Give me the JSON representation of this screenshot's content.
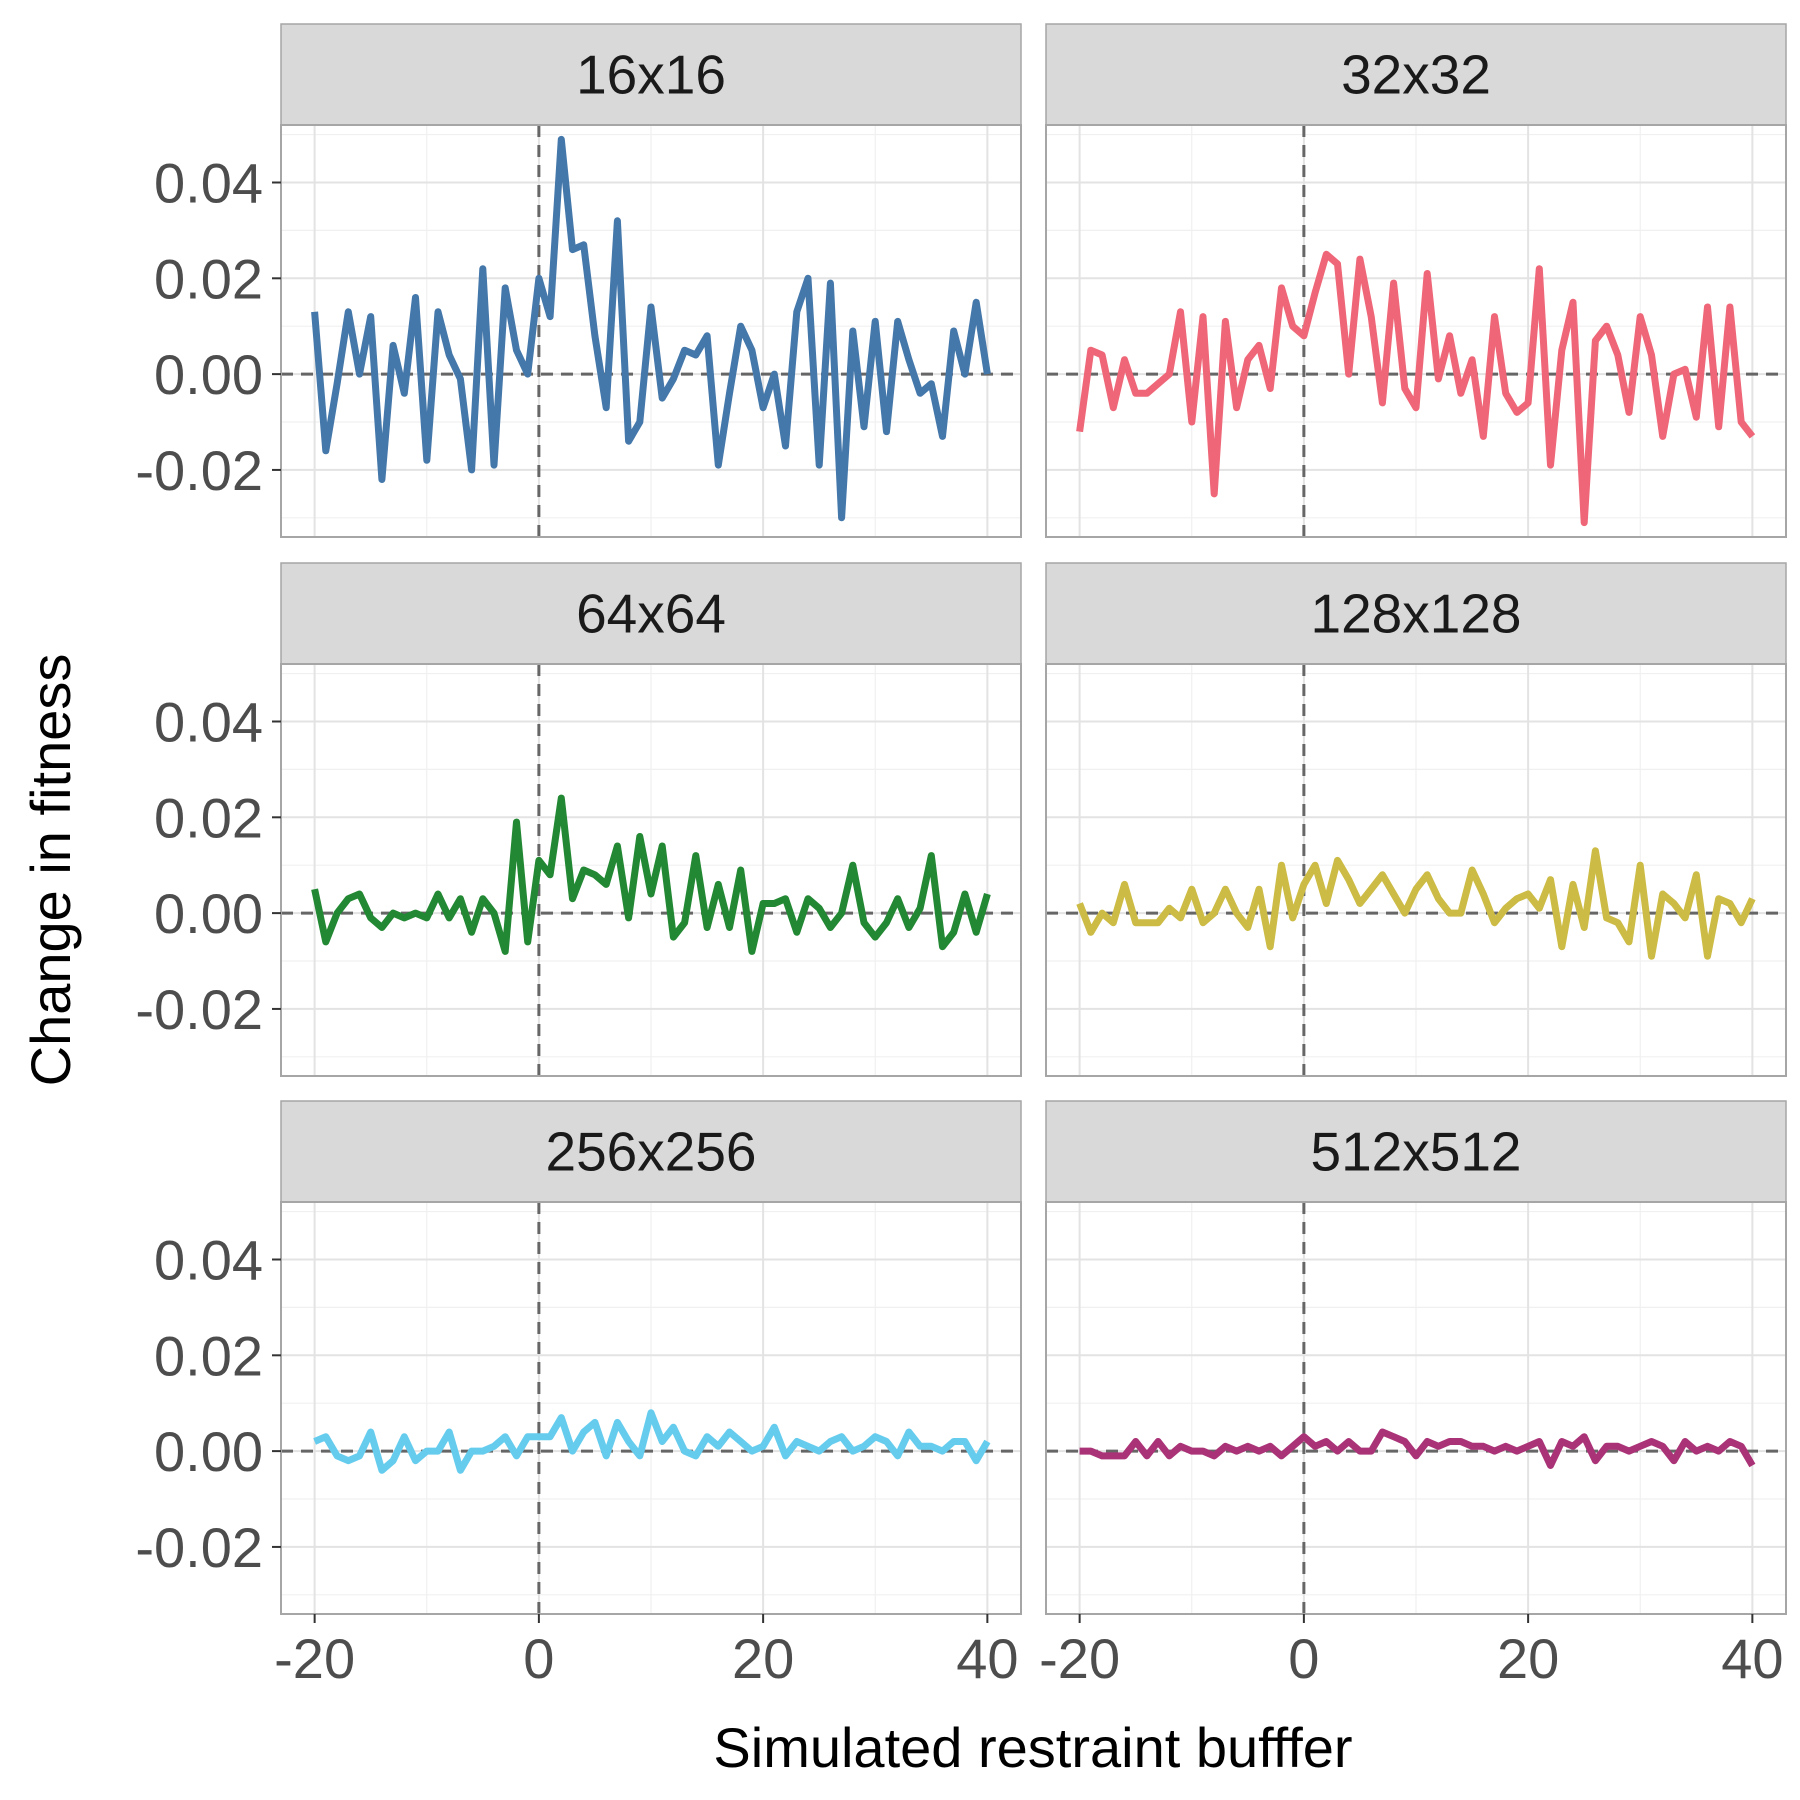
{
  "chart_data": {
    "type": "line",
    "layout": "facet-grid",
    "xlabel": "Simulated restraint bufffer",
    "ylabel": "Change in fitness",
    "xlim": [
      -23,
      43
    ],
    "ylim": [
      -0.034,
      0.052
    ],
    "x_ticks": [
      -20,
      0,
      20,
      40
    ],
    "x_tick_labels": [
      "-20",
      "0",
      "20",
      "40"
    ],
    "y_ticks": [
      -0.02,
      0.0,
      0.02,
      0.04
    ],
    "y_tick_labels": [
      "-0.02",
      "0.00",
      "0.02",
      "0.04"
    ],
    "reference_lines": {
      "x": 0,
      "y": 0,
      "style": "dashed",
      "color": "#666666"
    },
    "grid": true,
    "legend": "none",
    "x": [
      -20,
      -19,
      -18,
      -17,
      -16,
      -15,
      -14,
      -13,
      -12,
      -11,
      -10,
      -9,
      -8,
      -7,
      -6,
      -5,
      -4,
      -3,
      -2,
      -1,
      0,
      1,
      2,
      3,
      4,
      5,
      6,
      7,
      8,
      9,
      10,
      11,
      12,
      13,
      14,
      15,
      16,
      17,
      18,
      19,
      20,
      21,
      22,
      23,
      24,
      25,
      26,
      27,
      28,
      29,
      30,
      31,
      32,
      33,
      34,
      35,
      36,
      37,
      38,
      39,
      40
    ],
    "panels": [
      {
        "name": "16x16",
        "color": "#4477aa",
        "values": [
          0.013,
          -0.016,
          -0.002,
          0.013,
          0.0,
          0.012,
          -0.022,
          0.006,
          -0.004,
          0.016,
          -0.018,
          0.013,
          0.004,
          -0.001,
          -0.02,
          0.022,
          -0.019,
          0.018,
          0.005,
          0.0,
          0.02,
          0.012,
          0.049,
          0.026,
          0.027,
          0.008,
          -0.007,
          0.032,
          -0.014,
          -0.01,
          0.014,
          -0.005,
          -0.001,
          0.005,
          0.004,
          0.008,
          -0.019,
          -0.004,
          0.01,
          0.005,
          -0.007,
          0.0,
          -0.015,
          0.013,
          0.02,
          -0.019,
          0.019,
          -0.03,
          0.009,
          -0.011,
          0.011,
          -0.012,
          0.011,
          0.003,
          -0.004,
          -0.002,
          -0.013,
          0.009,
          0.0,
          0.015,
          0.0
        ]
      },
      {
        "name": "32x32",
        "color": "#ee6677",
        "values": [
          -0.012,
          0.005,
          0.004,
          -0.007,
          0.003,
          -0.004,
          -0.004,
          -0.002,
          0.0,
          0.013,
          -0.01,
          0.012,
          -0.025,
          0.011,
          -0.007,
          0.003,
          0.006,
          -0.003,
          0.018,
          0.01,
          0.008,
          0.017,
          0.025,
          0.023,
          0.0,
          0.024,
          0.012,
          -0.006,
          0.019,
          -0.003,
          -0.007,
          0.021,
          -0.001,
          0.008,
          -0.004,
          0.003,
          -0.013,
          0.012,
          -0.004,
          -0.008,
          -0.006,
          0.022,
          -0.019,
          0.005,
          0.015,
          -0.031,
          0.007,
          0.01,
          0.004,
          -0.008,
          0.012,
          0.004,
          -0.013,
          0.0,
          0.001,
          -0.009,
          0.014,
          -0.011,
          0.014,
          -0.01,
          -0.013
        ]
      },
      {
        "name": "64x64",
        "color": "#228833",
        "values": [
          0.005,
          -0.006,
          0.0,
          0.003,
          0.004,
          -0.001,
          -0.003,
          0.0,
          -0.001,
          0.0,
          -0.001,
          0.004,
          -0.001,
          0.003,
          -0.004,
          0.003,
          0.0,
          -0.008,
          0.019,
          -0.006,
          0.011,
          0.008,
          0.024,
          0.003,
          0.009,
          0.008,
          0.006,
          0.014,
          -0.001,
          0.016,
          0.004,
          0.014,
          -0.005,
          -0.002,
          0.012,
          -0.003,
          0.006,
          -0.003,
          0.009,
          -0.008,
          0.002,
          0.002,
          0.003,
          -0.004,
          0.003,
          0.001,
          -0.003,
          0.0,
          0.01,
          -0.002,
          -0.005,
          -0.002,
          0.003,
          -0.003,
          0.001,
          0.012,
          -0.007,
          -0.004,
          0.004,
          -0.004,
          0.004
        ]
      },
      {
        "name": "128x128",
        "color": "#ccbb44",
        "values": [
          0.002,
          -0.004,
          0.0,
          -0.002,
          0.006,
          -0.002,
          -0.002,
          -0.002,
          0.001,
          -0.001,
          0.005,
          -0.002,
          0.0,
          0.005,
          0.0,
          -0.003,
          0.005,
          -0.007,
          0.01,
          -0.001,
          0.006,
          0.01,
          0.002,
          0.011,
          0.007,
          0.002,
          0.005,
          0.008,
          0.004,
          0.0,
          0.005,
          0.008,
          0.003,
          0.0,
          0.0,
          0.009,
          0.004,
          -0.002,
          0.001,
          0.003,
          0.004,
          0.001,
          0.007,
          -0.007,
          0.006,
          -0.003,
          0.013,
          -0.001,
          -0.002,
          -0.006,
          0.01,
          -0.009,
          0.004,
          0.002,
          -0.001,
          0.008,
          -0.009,
          0.003,
          0.002,
          -0.002,
          0.003
        ]
      },
      {
        "name": "256x256",
        "color": "#66ccee",
        "values": [
          0.002,
          0.003,
          -0.001,
          -0.002,
          -0.001,
          0.004,
          -0.004,
          -0.002,
          0.003,
          -0.002,
          0.0,
          0.0,
          0.004,
          -0.004,
          0.0,
          0.0,
          0.001,
          0.003,
          -0.001,
          0.003,
          0.003,
          0.003,
          0.007,
          0.0,
          0.004,
          0.006,
          -0.001,
          0.006,
          0.002,
          -0.001,
          0.008,
          0.002,
          0.005,
          0.0,
          -0.001,
          0.003,
          0.001,
          0.004,
          0.002,
          0.0,
          0.001,
          0.005,
          -0.001,
          0.002,
          0.001,
          0.0,
          0.002,
          0.003,
          0.0,
          0.001,
          0.003,
          0.002,
          -0.001,
          0.004,
          0.001,
          0.001,
          0.0,
          0.002,
          0.002,
          -0.002,
          0.002
        ]
      },
      {
        "name": "512x512",
        "color": "#aa3377",
        "values": [
          0.0,
          0.0,
          -0.001,
          -0.001,
          -0.001,
          0.002,
          -0.001,
          0.002,
          -0.001,
          0.001,
          0.0,
          0.0,
          -0.001,
          0.001,
          0.0,
          0.001,
          0.0,
          0.001,
          -0.001,
          0.001,
          0.003,
          0.001,
          0.002,
          0.0,
          0.002,
          0.0,
          0.0,
          0.004,
          0.003,
          0.002,
          -0.001,
          0.002,
          0.001,
          0.002,
          0.002,
          0.001,
          0.001,
          0.0,
          0.001,
          0.0,
          0.001,
          0.002,
          -0.003,
          0.002,
          0.001,
          0.003,
          -0.002,
          0.001,
          0.001,
          0.0,
          0.001,
          0.002,
          0.001,
          -0.002,
          0.002,
          0.0,
          0.001,
          0.0,
          0.002,
          0.001,
          -0.003
        ]
      }
    ]
  }
}
